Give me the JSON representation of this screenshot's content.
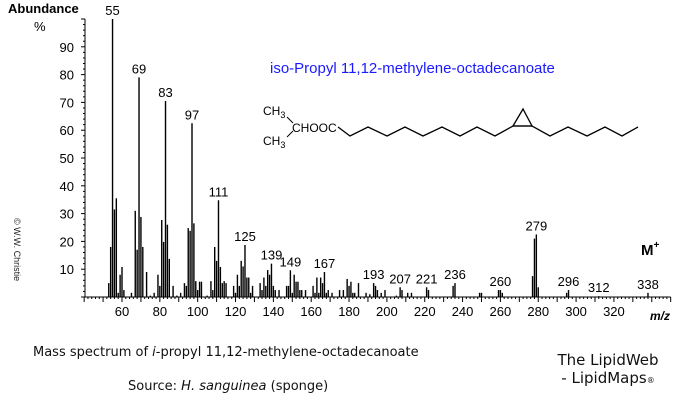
{
  "chart_data": {
    "type": "bar",
    "title": "iso-Propyl 11,12-methylene-octadecanoate",
    "ylabel": "Abundance",
    "ylabel_unit": "%",
    "xlabel": "m/z",
    "xlim": [
      40,
      350
    ],
    "ylim": [
      0,
      100
    ],
    "x_ticks": [
      60,
      80,
      100,
      120,
      140,
      160,
      180,
      200,
      220,
      240,
      260,
      280,
      300,
      320
    ],
    "y_ticks": [
      10,
      20,
      30,
      40,
      50,
      60,
      70,
      80,
      90
    ],
    "grid": false,
    "molecular_ion_label": "M",
    "molecular_ion_sup": "+",
    "peak_labels": [
      55,
      69,
      83,
      97,
      111,
      125,
      139,
      149,
      167,
      193,
      207,
      221,
      236,
      260,
      279,
      296,
      312,
      338
    ],
    "peaks": [
      [
        53,
        5
      ],
      [
        54,
        18
      ],
      [
        55,
        100
      ],
      [
        56,
        31.5
      ],
      [
        57,
        35.5
      ],
      [
        58,
        1.5
      ],
      [
        59,
        8
      ],
      [
        60,
        10.8
      ],
      [
        61,
        2.5
      ],
      [
        65,
        1.5
      ],
      [
        67,
        31
      ],
      [
        68,
        17
      ],
      [
        69,
        79
      ],
      [
        70,
        28.8
      ],
      [
        71,
        18
      ],
      [
        73,
        9
      ],
      [
        75,
        0.5
      ],
      [
        77,
        1.5
      ],
      [
        79,
        8
      ],
      [
        80,
        4
      ],
      [
        81,
        27.7
      ],
      [
        82,
        19.8
      ],
      [
        83,
        70.5
      ],
      [
        84,
        26
      ],
      [
        85,
        13.7
      ],
      [
        87,
        4
      ],
      [
        89,
        0.5
      ],
      [
        91,
        1.5
      ],
      [
        93,
        5
      ],
      [
        94,
        4
      ],
      [
        95,
        24.8
      ],
      [
        96,
        23.8
      ],
      [
        97,
        62.5
      ],
      [
        98,
        26.5
      ],
      [
        99,
        5.7
      ],
      [
        100,
        2.5
      ],
      [
        101,
        5.5
      ],
      [
        102,
        5.5
      ],
      [
        105,
        0.5
      ],
      [
        107,
        5.7
      ],
      [
        108,
        2.5
      ],
      [
        109,
        18
      ],
      [
        110,
        13
      ],
      [
        111,
        34.8
      ],
      [
        112,
        10.8
      ],
      [
        113,
        5
      ],
      [
        114,
        5.7
      ],
      [
        115,
        5
      ],
      [
        119,
        4
      ],
      [
        120,
        1.5
      ],
      [
        121,
        8
      ],
      [
        122,
        4
      ],
      [
        123,
        13
      ],
      [
        124,
        11
      ],
      [
        125,
        18.7
      ],
      [
        126,
        7
      ],
      [
        127,
        7
      ],
      [
        128,
        1.5
      ],
      [
        129,
        4
      ],
      [
        133,
        5
      ],
      [
        134,
        2.5
      ],
      [
        135,
        7
      ],
      [
        136,
        4
      ],
      [
        137,
        9.7
      ],
      [
        138,
        8
      ],
      [
        139,
        12
      ],
      [
        140,
        4
      ],
      [
        141,
        2.5
      ],
      [
        143,
        2.5
      ],
      [
        147,
        4
      ],
      [
        148,
        4
      ],
      [
        149,
        9.6
      ],
      [
        150,
        1.5
      ],
      [
        151,
        8
      ],
      [
        152,
        5.5
      ],
      [
        153,
        5.5
      ],
      [
        154,
        2.5
      ],
      [
        155,
        2.5
      ],
      [
        157,
        2.5
      ],
      [
        161,
        4
      ],
      [
        162,
        1.5
      ],
      [
        163,
        7
      ],
      [
        164,
        1.5
      ],
      [
        165,
        7
      ],
      [
        166,
        5
      ],
      [
        167,
        9
      ],
      [
        168,
        1.5
      ],
      [
        169,
        2.5
      ],
      [
        171,
        1.5
      ],
      [
        175,
        2.5
      ],
      [
        177,
        2.5
      ],
      [
        179,
        6.5
      ],
      [
        180,
        4
      ],
      [
        181,
        5.5
      ],
      [
        182,
        1.5
      ],
      [
        183,
        1.5
      ],
      [
        185,
        5
      ],
      [
        189,
        1.5
      ],
      [
        191,
        1
      ],
      [
        193,
        5
      ],
      [
        194,
        4
      ],
      [
        195,
        2.5
      ],
      [
        197,
        1.5
      ],
      [
        199,
        2.5
      ],
      [
        205,
        0.5
      ],
      [
        207,
        3.5
      ],
      [
        208,
        2.5
      ],
      [
        211,
        1.5
      ],
      [
        213,
        1.5
      ],
      [
        221,
        3.5
      ],
      [
        222,
        2.5
      ],
      [
        235,
        4
      ],
      [
        236,
        5
      ],
      [
        249,
        1.5
      ],
      [
        250,
        1.5
      ],
      [
        259,
        2.5
      ],
      [
        260,
        2.5
      ],
      [
        261,
        1.5
      ],
      [
        277,
        7.5
      ],
      [
        278,
        21
      ],
      [
        279,
        22.5
      ],
      [
        280,
        3.5
      ],
      [
        295,
        1.5
      ],
      [
        296,
        2.5
      ],
      [
        312,
        0.3
      ],
      [
        338,
        1.5
      ]
    ]
  },
  "structure": {
    "ch3_top": "CH",
    "ch3_bottom": "CH",
    "sub3": "3",
    "ester": "CHOOC"
  },
  "copyright": "© W.W. Christie",
  "caption": {
    "line1_prefix": "Mass spectrum of ",
    "line1_italic": "i",
    "line1_suffix": "-propyl 11,12-methylene-octadecanoate",
    "line2_prefix": "Source: ",
    "line2_italic": "H. sanguinea",
    "line2_suffix": " (sponge)"
  },
  "brand": {
    "line1": "The LipidWeb",
    "line2": "- LipidMaps",
    "mark": "®"
  },
  "colors": {
    "title": "#1a1aff",
    "bars": "#000000",
    "structure": "#000000"
  }
}
